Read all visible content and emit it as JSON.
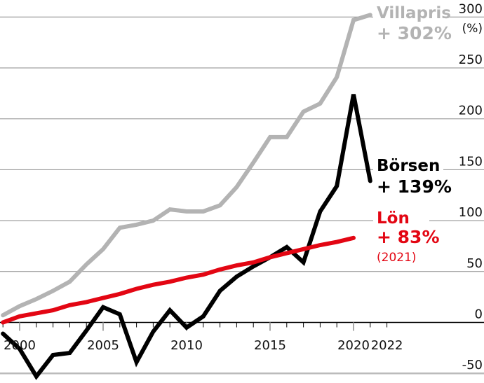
{
  "chart_data": {
    "type": "line",
    "title": "",
    "xlabel": "",
    "ylabel": "(%)",
    "ylim": [
      -50,
      300
    ],
    "xlim": [
      1999,
      2022
    ],
    "grid": true,
    "y_ticks": [
      300,
      250,
      200,
      150,
      100,
      50,
      0,
      -50
    ],
    "y_tick_labels": [
      "300",
      "250",
      "200",
      "150",
      "100",
      "50",
      "0",
      "-50"
    ],
    "x_ticks": [
      2000,
      2005,
      2010,
      2015,
      2020,
      2022
    ],
    "x_tick_labels": [
      "2000",
      "2005",
      "2010",
      "2015",
      "2020",
      "2022"
    ],
    "series": [
      {
        "name": "Villapris",
        "change_label": "+ 302%",
        "color": "#b3b3b3",
        "x": [
          1999,
          2000,
          2001,
          2002,
          2003,
          2004,
          2005,
          2006,
          2007,
          2008,
          2009,
          2010,
          2011,
          2012,
          2013,
          2014,
          2015,
          2016,
          2017,
          2018,
          2019,
          2020,
          2021
        ],
        "values": [
          7,
          16,
          23,
          31,
          40,
          57,
          72,
          93,
          96,
          100,
          111,
          109,
          109,
          115,
          133,
          157,
          182,
          182,
          207,
          215,
          241,
          297,
          302
        ]
      },
      {
        "name": "Börsen",
        "change_label": "+ 139%",
        "color": "#000000",
        "x": [
          1999,
          2000,
          2001,
          2002,
          2003,
          2004,
          2005,
          2006,
          2007,
          2008,
          2009,
          2010,
          2011,
          2012,
          2013,
          2014,
          2015,
          2016,
          2017,
          2018,
          2019,
          2020,
          2021
        ],
        "values": [
          -11,
          -26,
          -53,
          -32,
          -30,
          -8,
          15,
          8,
          -39,
          -9,
          12,
          -5,
          6,
          31,
          45,
          55,
          64,
          74,
          59,
          109,
          134,
          224,
          139
        ]
      },
      {
        "name": "Lön",
        "change_label": "+ 83%",
        "note": "(2021)",
        "color": "#e30613",
        "x": [
          1999,
          2000,
          2001,
          2002,
          2003,
          2004,
          2005,
          2006,
          2007,
          2008,
          2009,
          2010,
          2011,
          2012,
          2013,
          2014,
          2015,
          2016,
          2017,
          2018,
          2019,
          2020
        ],
        "values": [
          0,
          6,
          9,
          12,
          17,
          20,
          24,
          28,
          33,
          37,
          40,
          44,
          47,
          52,
          56,
          59,
          64,
          68,
          72,
          76,
          79,
          83
        ]
      }
    ]
  }
}
